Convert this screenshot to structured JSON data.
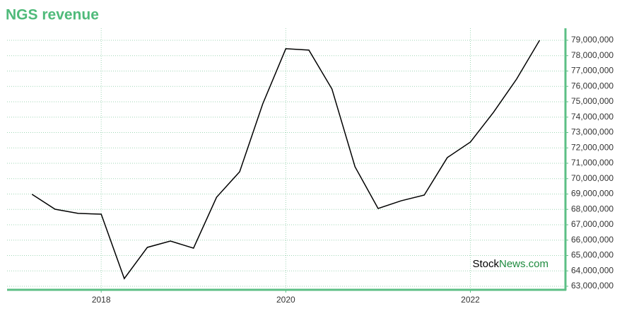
{
  "chart_data": {
    "type": "line",
    "title": "NGS revenue",
    "x": [
      2017.25,
      2017.5,
      2017.75,
      2018,
      2018.25,
      2018.5,
      2018.75,
      2019,
      2019.25,
      2019.5,
      2019.75,
      2020,
      2020.25,
      2020.5,
      2020.75,
      2021,
      2021.25,
      2021.5,
      2021.75,
      2022,
      2022.25,
      2022.5,
      2022.75
    ],
    "series": [
      {
        "color": "#000000",
        "values": [
          68980000,
          68010000,
          67740000,
          67690000,
          63500000,
          65530000,
          65940000,
          65480000,
          68790000,
          70450000,
          74860000,
          78450000,
          78360000,
          75830000,
          70770000,
          68060000,
          68560000,
          68930000,
          71370000,
          72380000,
          74310000,
          76470000,
          79000000
        ]
      }
    ],
    "xlim": [
      2016.98,
      2023.03
    ],
    "xticks": [
      2018,
      2020,
      2022
    ],
    "ylim": [
      62770000,
      79780000
    ],
    "yticks": [
      {
        "value": 63000000,
        "label": "63,000,000"
      },
      {
        "value": 64000000,
        "label": "64,000,000"
      },
      {
        "value": 65000000,
        "label": "65,000,000"
      },
      {
        "value": 66000000,
        "label": "66,000,000"
      },
      {
        "value": 67000000,
        "label": "67,000,000"
      },
      {
        "value": 68000000,
        "label": "68,000,000"
      },
      {
        "value": 69000000,
        "label": "69,000,000"
      },
      {
        "value": 70000000,
        "label": "70,000,000"
      },
      {
        "value": 71000000,
        "label": "71,000,000"
      },
      {
        "value": 72000000,
        "label": "72,000,000"
      },
      {
        "value": 73000000,
        "label": "73,000,000"
      },
      {
        "value": 74000000,
        "label": "74,000,000"
      },
      {
        "value": 75000000,
        "label": "75,000,000"
      },
      {
        "value": 76000000,
        "label": "76,000,000"
      },
      {
        "value": 77000000,
        "label": "77,000,000"
      },
      {
        "value": 78000000,
        "label": "78,000,000"
      },
      {
        "value": 79000000,
        "label": "79,000,000"
      }
    ],
    "grid": true,
    "axis_color": "#5cbf85",
    "watermark": {
      "first": "Stock",
      "second": "News.com"
    }
  }
}
